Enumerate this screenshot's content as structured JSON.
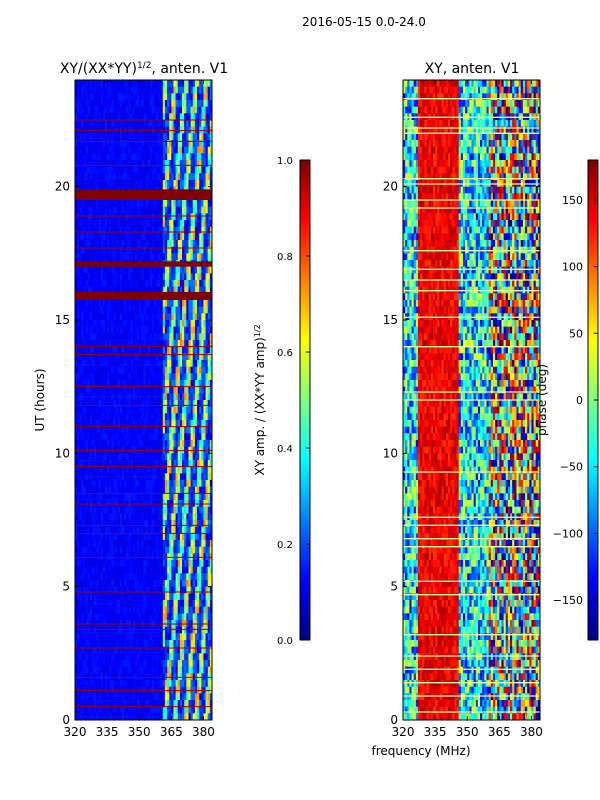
{
  "figure_title": "2016-05-15 0.0-24.0",
  "colors": {
    "jet": [
      "#00007f",
      "#0000ff",
      "#007fff",
      "#00ffff",
      "#7fff7f",
      "#ffff00",
      "#ff7f00",
      "#ff0000",
      "#7f0000"
    ],
    "flag_line": "#a00000",
    "phase_flag_line": "#f0ffa0"
  },
  "chart_data": [
    {
      "type": "heatmap",
      "title": "XY/(XX*YY)",
      "title_exponent": "1/2",
      "title_suffix": ", anten. V1",
      "xlabel": "",
      "ylabel": "UT (hours)",
      "xlim": [
        320,
        384
      ],
      "ylim": [
        0,
        24
      ],
      "x_ticks": [
        320,
        335,
        350,
        365,
        380
      ],
      "y_ticks": [
        0,
        5,
        10,
        15,
        20
      ],
      "value_range": [
        0.0,
        1.0
      ],
      "background_value": 0.12,
      "band_region_mhz": [
        361,
        384
      ],
      "flag_bands_hours": [
        [
          15.75,
          16.05
        ],
        [
          17.0,
          17.2
        ],
        [
          19.5,
          19.9
        ]
      ],
      "flag_lines_hours": [
        0.5,
        1.1,
        1.6,
        2.7,
        3.4,
        3.6,
        4.8,
        6.1,
        7.0,
        7.3,
        8.1,
        8.5,
        9.5,
        10.1,
        11.0,
        11.8,
        12.5,
        13.7,
        14.0,
        17.7,
        18.3,
        18.9,
        20.8,
        21.7,
        22.1,
        22.5
      ],
      "colorbar": {
        "label": "XY amp. / (XX*YY amp)",
        "label_exponent": "1/2",
        "ticks": [
          "0.0",
          "0.2",
          "0.4",
          "0.6",
          "0.8",
          "1.0"
        ],
        "range": [
          0.0,
          1.0
        ]
      }
    },
    {
      "type": "heatmap",
      "title": "XY, anten. V1",
      "xlabel": "frequency (MHz)",
      "ylabel": "",
      "xlim": [
        320,
        384
      ],
      "ylim": [
        0,
        24
      ],
      "x_ticks": [
        320,
        335,
        350,
        365,
        380
      ],
      "y_ticks": [
        0,
        5,
        10,
        15,
        20
      ],
      "value_range": [
        -180,
        180
      ],
      "red_band_mhz": [
        327,
        346
      ],
      "mixed_band_mhz": [
        360,
        384
      ],
      "flag_lines_hours": [
        0.3,
        0.9,
        1.4,
        1.9,
        2.4,
        3.2,
        4.7,
        5.2,
        6.5,
        6.8,
        7.3,
        7.6,
        9.3,
        12.0,
        12.3,
        14.0,
        15.1,
        16.1,
        16.5,
        16.9,
        17.6,
        19.2,
        19.5,
        20.1,
        20.3,
        22.0,
        22.2,
        22.6,
        23.3
      ],
      "colorbar": {
        "label": "phase (deg)",
        "ticks": [
          "150",
          "100",
          "50",
          "0",
          "−50",
          "−100",
          "−150"
        ],
        "tick_values": [
          150,
          100,
          50,
          0,
          -50,
          -100,
          -150
        ],
        "range": [
          -180,
          180
        ]
      }
    }
  ]
}
